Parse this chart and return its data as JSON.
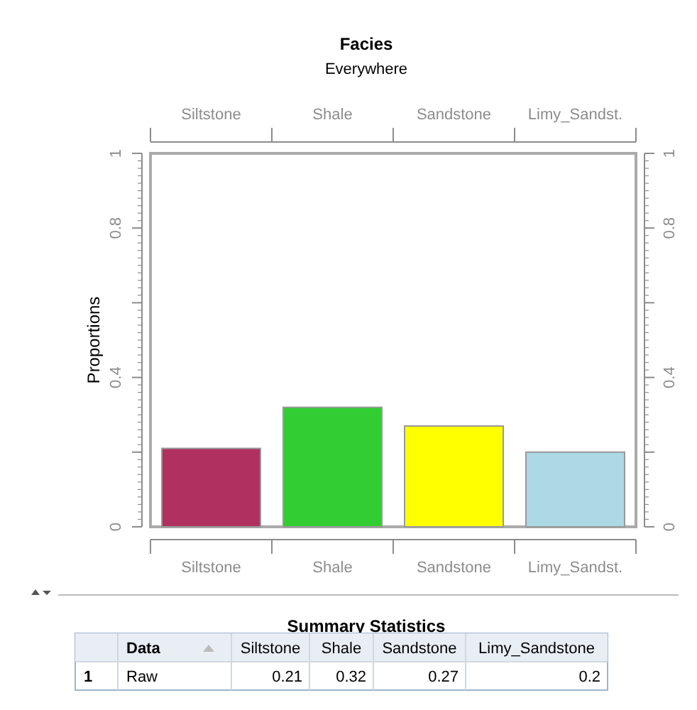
{
  "chart_data": {
    "type": "bar",
    "title": "Facies",
    "subtitle": "Everywhere",
    "ylabel": "Proportions",
    "categories": [
      "Siltstone",
      "Shale",
      "Sandstone",
      "Limy_Sandst."
    ],
    "values": [
      0.21,
      0.32,
      0.27,
      0.2
    ],
    "colors": [
      "#b03060",
      "#32cd32",
      "#ffff00",
      "#add8e6"
    ],
    "ylim": [
      0,
      1
    ],
    "yticks": [
      0,
      {
        "value": 0.2,
        "label": null
      },
      0.4,
      {
        "value": 0.6,
        "label": null
      },
      0.8,
      1
    ],
    "y2lim": [
      0,
      1
    ],
    "y2ticks": [
      0,
      {
        "value": 0.2,
        "label": null
      },
      0.4,
      {
        "value": 0.6,
        "label": null
      },
      0.8,
      1
    ],
    "grid": false,
    "annotations": [
      "Summary Statistics",
      "Data",
      "Siltstone",
      "Shale",
      "Sandstone",
      "Limy_Sandstone",
      "1",
      "Raw",
      "0.21",
      "0.32",
      "0.27",
      "0.2"
    ]
  }
}
